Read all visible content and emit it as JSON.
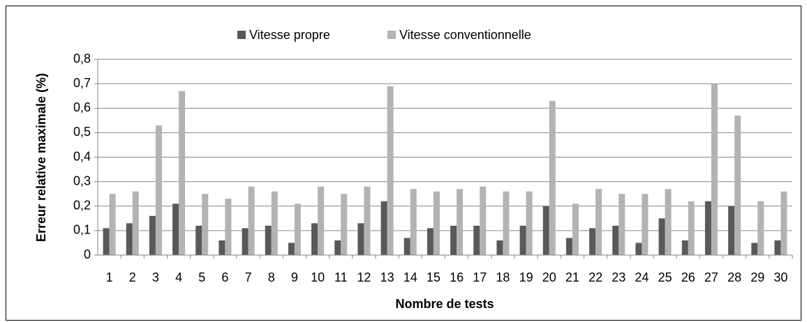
{
  "chart_data": {
    "type": "bar",
    "y_label": "Erreur relative maximale (%)",
    "x_label": "Nombre de tests",
    "categories": [
      "1",
      "2",
      "3",
      "4",
      "5",
      "6",
      "7",
      "8",
      "9",
      "10",
      "11",
      "12",
      "13",
      "14",
      "15",
      "16",
      "17",
      "18",
      "19",
      "20",
      "21",
      "22",
      "23",
      "24",
      "25",
      "26",
      "27",
      "28",
      "29",
      "30"
    ],
    "series": [
      {
        "name": "Vitesse propre",
        "color": "#595959",
        "values": [
          0.11,
          0.13,
          0.16,
          0.21,
          0.12,
          0.06,
          0.11,
          0.12,
          0.05,
          0.13,
          0.06,
          0.13,
          0.22,
          0.07,
          0.11,
          0.12,
          0.12,
          0.06,
          0.12,
          0.2,
          0.07,
          0.11,
          0.12,
          0.05,
          0.15,
          0.06,
          0.22,
          0.2,
          0.05,
          0.06
        ]
      },
      {
        "name": "Vitesse conventionnelle",
        "color": "#b3b3b3",
        "values": [
          0.25,
          0.26,
          0.53,
          0.67,
          0.25,
          0.23,
          0.28,
          0.26,
          0.21,
          0.28,
          0.25,
          0.28,
          0.69,
          0.27,
          0.26,
          0.27,
          0.28,
          0.26,
          0.26,
          0.63,
          0.21,
          0.27,
          0.25,
          0.25,
          0.27,
          0.22,
          0.7,
          0.57,
          0.22,
          0.26
        ]
      }
    ],
    "ylim": [
      0,
      0.8
    ],
    "yticks": [
      0,
      {
        "value": 0.1,
        "label": "0,1"
      },
      {
        "value": 0.2,
        "label": "0,2"
      },
      {
        "value": 0.3,
        "label": "0,3"
      },
      {
        "value": 0.4,
        "label": "0,4"
      },
      {
        "value": 0.5,
        "label": "0,5"
      },
      {
        "value": 0.6,
        "label": "0,6"
      },
      {
        "value": 0.7,
        "label": "0,7"
      },
      {
        "value": 0.8,
        "label": "0,8"
      }
    ],
    "grid": true,
    "legend": "top"
  }
}
